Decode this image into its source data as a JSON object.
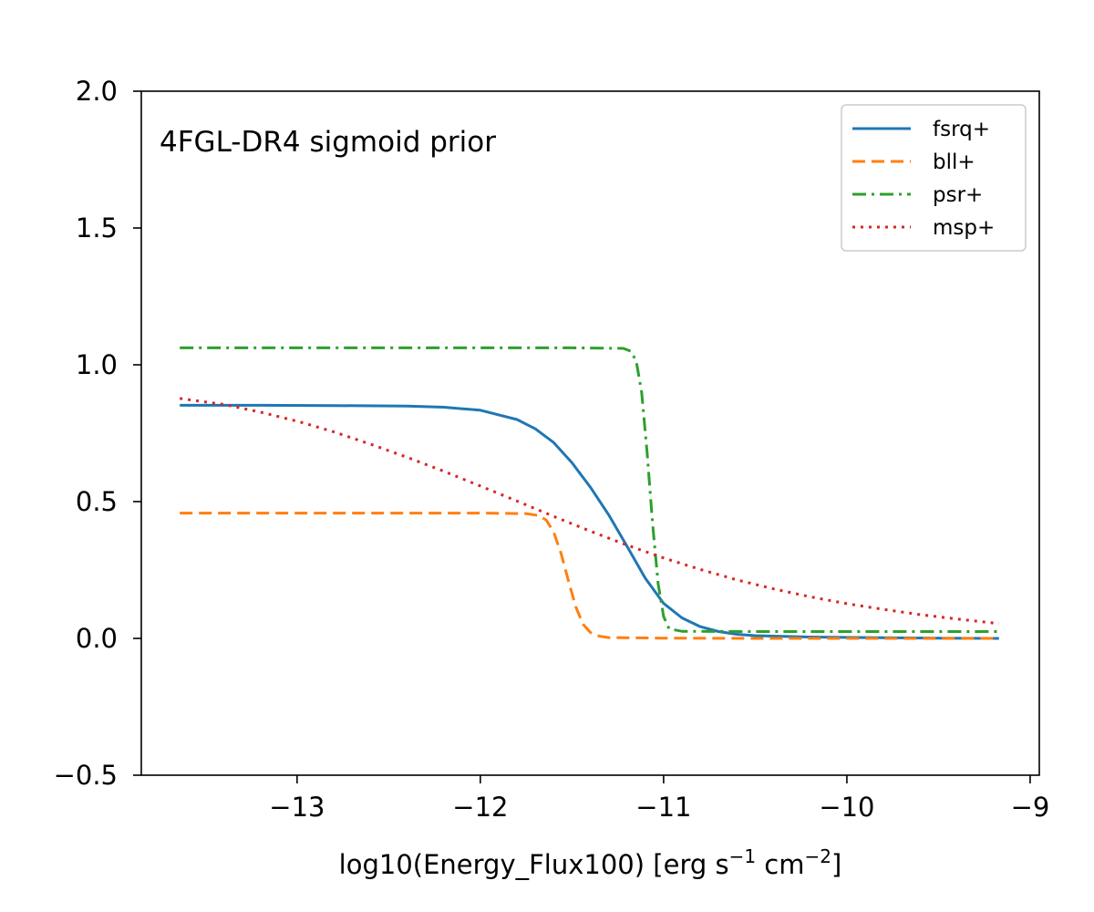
{
  "chart_data": {
    "type": "line",
    "annotation": "4FGL-DR4 sigmoid prior",
    "xlabel_main": "log10(Energy_Flux100) [erg s",
    "xlabel_exp1": "−1",
    "xlabel_mid": " cm",
    "xlabel_exp2": "−2",
    "xlabel_end": "]",
    "ylabel": "",
    "xlim": [
      -13.85,
      -8.95
    ],
    "ylim": [
      -0.5,
      2.0
    ],
    "xticks": [
      -13,
      -12,
      -11,
      -10,
      -9
    ],
    "xtick_labels": [
      "−13",
      "−12",
      "−11",
      "−10",
      "−9"
    ],
    "yticks": [
      -0.5,
      0.0,
      0.5,
      1.0,
      1.5,
      2.0
    ],
    "ytick_labels": [
      "−0.5",
      "0.0",
      "0.5",
      "1.0",
      "1.5",
      "2.0"
    ],
    "grid": false,
    "legend_position": "top-right",
    "series": [
      {
        "name": "fsrq+",
        "color": "#1f77b4",
        "dash": "solid",
        "x": [
          -13.64,
          -13.2,
          -12.8,
          -12.4,
          -12.2,
          -12.0,
          -11.8,
          -11.7,
          -11.6,
          -11.5,
          -11.4,
          -11.3,
          -11.2,
          -11.1,
          -11.0,
          -10.9,
          -10.8,
          -10.7,
          -10.6,
          -10.5,
          -10.2,
          -9.9,
          -9.5,
          -9.17
        ],
        "y": [
          0.852,
          0.852,
          0.851,
          0.849,
          0.845,
          0.834,
          0.8,
          0.766,
          0.716,
          0.642,
          0.553,
          0.452,
          0.337,
          0.22,
          0.128,
          0.075,
          0.043,
          0.025,
          0.015,
          0.01,
          0.005,
          0.003,
          0.001,
          0.0
        ]
      },
      {
        "name": "bll+",
        "color": "#ff7f0e",
        "dash": "dashed",
        "x": [
          -13.64,
          -12.5,
          -12.0,
          -11.75,
          -11.68,
          -11.64,
          -11.6,
          -11.56,
          -11.52,
          -11.48,
          -11.44,
          -11.4,
          -11.35,
          -11.3,
          -11.0,
          -10.5,
          -10.0,
          -9.5,
          -9.17
        ],
        "y": [
          0.458,
          0.458,
          0.458,
          0.456,
          0.449,
          0.432,
          0.389,
          0.312,
          0.212,
          0.117,
          0.052,
          0.022,
          0.008,
          0.003,
          0.001,
          0.0,
          0.0,
          0.0,
          0.0
        ]
      },
      {
        "name": "psr+",
        "color": "#2ca02c",
        "dash": "dashdot",
        "x": [
          -13.64,
          -12.5,
          -11.5,
          -11.22,
          -11.18,
          -11.15,
          -11.12,
          -11.09,
          -11.06,
          -11.03,
          -11.0,
          -10.97,
          -10.9,
          -10.5,
          -10.0,
          -9.5,
          -9.17
        ],
        "y": [
          1.062,
          1.062,
          1.062,
          1.06,
          1.05,
          1.015,
          0.9,
          0.68,
          0.42,
          0.2,
          0.08,
          0.035,
          0.026,
          0.025,
          0.025,
          0.025,
          0.025
        ]
      },
      {
        "name": "msp+",
        "color": "#d62728",
        "dash": "dotted",
        "x": [
          -13.64,
          -13.4,
          -13.2,
          -13.0,
          -12.8,
          -12.6,
          -12.4,
          -12.2,
          -12.0,
          -11.8,
          -11.6,
          -11.4,
          -11.2,
          -11.0,
          -10.8,
          -10.6,
          -10.4,
          -10.2,
          -10.0,
          -9.8,
          -9.6,
          -9.4,
          -9.17
        ],
        "y": [
          0.877,
          0.855,
          0.827,
          0.794,
          0.755,
          0.71,
          0.662,
          0.611,
          0.557,
          0.502,
          0.446,
          0.392,
          0.341,
          0.294,
          0.252,
          0.214,
          0.181,
          0.152,
          0.127,
          0.106,
          0.087,
          0.071,
          0.054
        ]
      }
    ]
  }
}
